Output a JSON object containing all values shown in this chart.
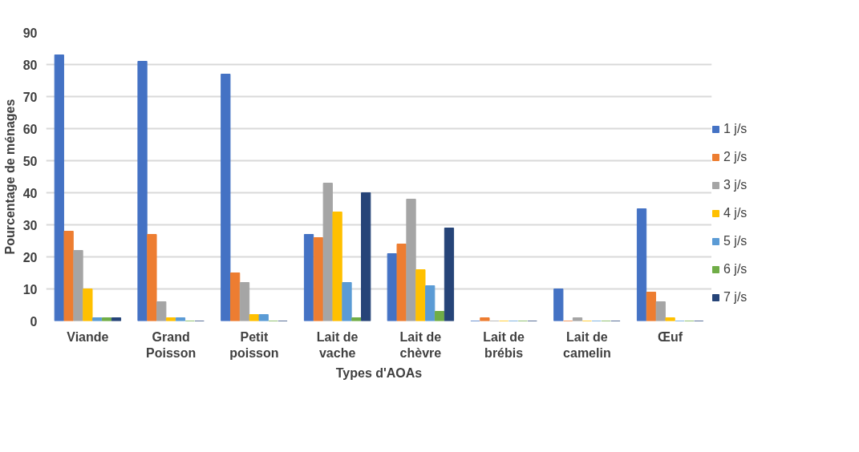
{
  "chart_data": {
    "type": "bar",
    "xlabel": "Types d'AOAs",
    "ylabel": "Pourcentage de ménages",
    "categories": [
      "Viande",
      "Grand Poisson",
      "Petit poisson",
      "Lait de vache",
      "Lait de chèvre",
      "Lait de brébis",
      "Lait de camelin",
      "Œuf"
    ],
    "series": [
      {
        "name": "1 j/s",
        "color": "#4472c4",
        "values": [
          83,
          81,
          77,
          27,
          21,
          0,
          10,
          35
        ]
      },
      {
        "name": "2 j/s",
        "color": "#ed7d31",
        "values": [
          28,
          27,
          15,
          26,
          24,
          1,
          0,
          9
        ]
      },
      {
        "name": "3 j/s",
        "color": "#a5a5a5",
        "values": [
          22,
          6,
          12,
          43,
          38,
          0,
          1,
          6
        ]
      },
      {
        "name": "4 j/s",
        "color": "#ffc000",
        "values": [
          10,
          1,
          2,
          34,
          16,
          0,
          0,
          1
        ]
      },
      {
        "name": "5 j/s",
        "color": "#5b9bd5",
        "values": [
          1,
          1,
          2,
          12,
          11,
          0,
          0,
          0
        ]
      },
      {
        "name": "6 j/s",
        "color": "#70ad47",
        "values": [
          1,
          0,
          0,
          1,
          3,
          0,
          0,
          0
        ]
      },
      {
        "name": "7 j/s",
        "color": "#264478",
        "values": [
          1,
          0,
          0,
          40,
          29,
          0,
          0,
          0
        ]
      }
    ],
    "ylim": [
      0,
      90
    ],
    "yticks": [
      0,
      10,
      20,
      30,
      40,
      50,
      60,
      70,
      80,
      90
    ],
    "grid": "y",
    "legend": "right"
  }
}
